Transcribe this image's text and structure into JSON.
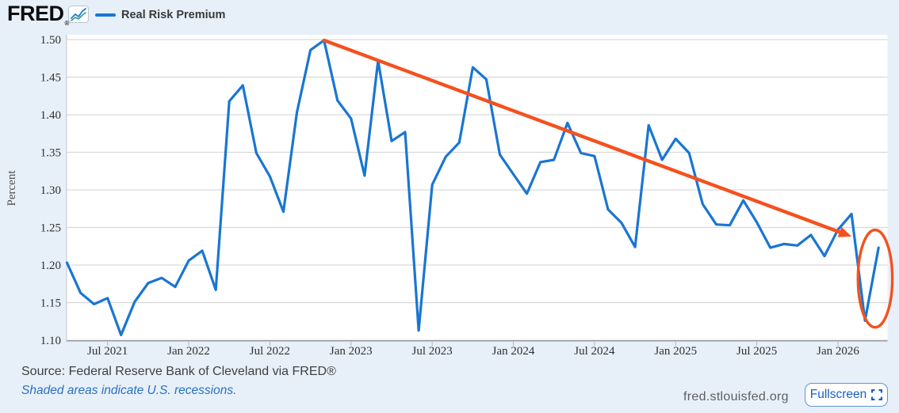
{
  "header": {
    "logo_text": "FRED",
    "logo_reg": "®",
    "legend_label": "Real Risk Premium"
  },
  "chart_data": {
    "type": "line",
    "title": "Real Risk Premium",
    "ylabel": "Percent",
    "ylim": [
      1.1,
      1.5
    ],
    "grid": "horizontal",
    "yticks": [
      1.1,
      1.15,
      1.2,
      1.25,
      1.3,
      1.35,
      1.4,
      1.45,
      1.5
    ],
    "ytick_labels": [
      "1.10",
      "1.15",
      "1.20",
      "1.25",
      "1.30",
      "1.35",
      "1.40",
      "1.45",
      "1.50"
    ],
    "xtick_months": [
      "2021-07",
      "2022-01",
      "2022-07",
      "2023-01",
      "2023-07",
      "2024-01",
      "2024-07",
      "2025-01",
      "2025-07",
      "2026-01"
    ],
    "xtick_labels": [
      "Jul 2021",
      "Jan 2022",
      "Jul 2022",
      "Jan 2023",
      "Jul 2023",
      "Jan 2024",
      "Jul 2024",
      "Jan 2025",
      "Jul 2025",
      "Jan 2026"
    ],
    "x": [
      "2021-04",
      "2021-05",
      "2021-06",
      "2021-07",
      "2021-08",
      "2021-09",
      "2021-10",
      "2021-11",
      "2021-12",
      "2022-01",
      "2022-02",
      "2022-03",
      "2022-04",
      "2022-05",
      "2022-06",
      "2022-07",
      "2022-08",
      "2022-09",
      "2022-10",
      "2022-11",
      "2022-12",
      "2023-01",
      "2023-02",
      "2023-03",
      "2023-04",
      "2023-05",
      "2023-06",
      "2023-07",
      "2023-08",
      "2023-09",
      "2023-10",
      "2023-11",
      "2023-12",
      "2024-01",
      "2024-02",
      "2024-03",
      "2024-04",
      "2024-05",
      "2024-06",
      "2024-07",
      "2024-08",
      "2024-09",
      "2024-10",
      "2024-11",
      "2024-12",
      "2025-01",
      "2025-02",
      "2025-03",
      "2025-04",
      "2025-05",
      "2025-06",
      "2025-07",
      "2025-08",
      "2025-09",
      "2025-10",
      "2025-11",
      "2025-12",
      "2026-01",
      "2026-02",
      "2026-03",
      "2026-04"
    ],
    "series": [
      {
        "name": "Real Risk Premium",
        "color": "#1976d2",
        "values": [
          1.203,
          1.163,
          1.148,
          1.156,
          1.107,
          1.151,
          1.176,
          1.183,
          1.171,
          1.206,
          1.219,
          1.167,
          1.418,
          1.439,
          1.349,
          1.318,
          1.271,
          1.403,
          1.486,
          1.499,
          1.419,
          1.395,
          1.319,
          1.472,
          1.365,
          1.377,
          1.113,
          1.307,
          1.344,
          1.363,
          1.463,
          1.447,
          1.347,
          1.321,
          1.295,
          1.337,
          1.34,
          1.389,
          1.349,
          1.345,
          1.274,
          1.256,
          1.224,
          1.386,
          1.34,
          1.368,
          1.349,
          1.281,
          1.254,
          1.253,
          1.286,
          1.257,
          1.223,
          1.228,
          1.226,
          1.24,
          1.212,
          1.247,
          1.268,
          1.126,
          1.223
        ]
      }
    ],
    "annotations": [
      {
        "type": "arrow",
        "name": "downward-trend-arrow",
        "color": "#f4511e",
        "from": {
          "x": "2022-11",
          "y": 1.499
        },
        "to": {
          "x": "2026-02",
          "y": 1.238
        }
      },
      {
        "type": "ellipse",
        "name": "recent-drop-highlight",
        "color": "#f4511e",
        "center": {
          "x": "2026-03",
          "y": 1.182
        },
        "x_offset_months": 0.75,
        "rx_months": 1.27,
        "ry": 0.0648
      }
    ]
  },
  "footer": {
    "source": "Source: Federal Reserve Bank of Cleveland via FRED®",
    "note": "Shaded areas indicate U.S. recessions.",
    "site": "fred.stlouisfed.org",
    "fullscreen_label": "Fullscreen"
  },
  "colors": {
    "background": "#e7f0f9",
    "plot_background": "#ffffff",
    "gridline": "#d9d9d9",
    "axis_line": "#9e9e9e",
    "tick_text": "#303030",
    "series_blue": "#1976d2",
    "annotation_orange": "#f4511e"
  }
}
